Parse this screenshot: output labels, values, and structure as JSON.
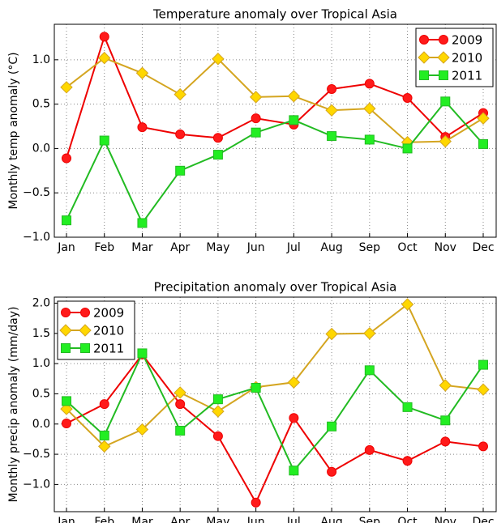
{
  "chart_data": [
    {
      "type": "line",
      "title": "Temperature anomaly over Tropical Asia",
      "y_label": "Monthly temp anomaly (°C)",
      "categories": [
        "Jan",
        "Feb",
        "Mar",
        "Apr",
        "May",
        "Jun",
        "Jul",
        "Aug",
        "Sep",
        "Oct",
        "Nov",
        "Dec"
      ],
      "ylim": [
        -1,
        1.4
      ],
      "yticks": [
        {
          "value": -1,
          "label": "−1.0"
        },
        {
          "value": -0.5,
          "label": "−0.5"
        },
        {
          "value": 0,
          "label": "0.0"
        },
        {
          "value": 0.5,
          "label": "0.5"
        },
        {
          "value": 1,
          "label": "1.0"
        }
      ],
      "grid": true,
      "legend": "upper-right",
      "series": [
        {
          "name": "2009",
          "color": "#ee0000",
          "marker_color": "#ff1a1a",
          "marker": "circle",
          "values": [
            -0.11,
            1.26,
            0.24,
            0.16,
            0.12,
            0.34,
            0.27,
            0.67,
            0.73,
            0.57,
            0.13,
            0.4
          ]
        },
        {
          "name": "2010",
          "color": "#d4a520",
          "marker_color": "#ffd700",
          "marker": "diamond",
          "values": [
            0.69,
            1.02,
            0.85,
            0.61,
            1.01,
            0.58,
            0.59,
            0.43,
            0.45,
            0.07,
            0.08,
            0.34
          ]
        },
        {
          "name": "2011",
          "color": "#22bb22",
          "marker_color": "#22ee22",
          "marker": "square",
          "values": [
            -0.81,
            0.09,
            -0.84,
            -0.25,
            -0.07,
            0.18,
            0.32,
            0.14,
            0.1,
            0.0,
            0.53,
            0.05
          ]
        }
      ]
    },
    {
      "type": "line",
      "title": "Precipitation anomaly over Tropical Asia",
      "y_label": "Monthly precip anomaly (mm/day)",
      "categories": [
        "Jan",
        "Feb",
        "Mar",
        "Apr",
        "May",
        "Jun",
        "Jul",
        "Aug",
        "Sep",
        "Oct",
        "Nov",
        "Dec"
      ],
      "ylim": [
        -1.45,
        2.1
      ],
      "yticks": [
        {
          "value": -1,
          "label": "−1.0"
        },
        {
          "value": -0.5,
          "label": "−0.5"
        },
        {
          "value": 0,
          "label": "0.0"
        },
        {
          "value": 0.5,
          "label": "0.5"
        },
        {
          "value": 1,
          "label": "1.0"
        },
        {
          "value": 1.5,
          "label": "1.5"
        },
        {
          "value": 2,
          "label": "2.0"
        }
      ],
      "grid": true,
      "legend": "upper-left",
      "series": [
        {
          "name": "2009",
          "color": "#ee0000",
          "marker_color": "#ff1a1a",
          "marker": "circle",
          "values": [
            0.01,
            0.33,
            1.15,
            0.33,
            -0.2,
            -1.3,
            0.1,
            -0.79,
            -0.43,
            -0.61,
            -0.29,
            -0.37
          ]
        },
        {
          "name": "2010",
          "color": "#d4a520",
          "marker_color": "#ffd700",
          "marker": "diamond",
          "values": [
            0.25,
            -0.37,
            -0.09,
            0.52,
            0.21,
            0.61,
            0.69,
            1.49,
            1.5,
            1.98,
            0.64,
            0.57
          ]
        },
        {
          "name": "2011",
          "color": "#22bb22",
          "marker_color": "#22ee22",
          "marker": "square",
          "values": [
            0.38,
            -0.19,
            1.17,
            -0.11,
            0.41,
            0.6,
            -0.77,
            -0.04,
            0.89,
            0.28,
            0.06,
            0.98
          ]
        }
      ]
    }
  ]
}
